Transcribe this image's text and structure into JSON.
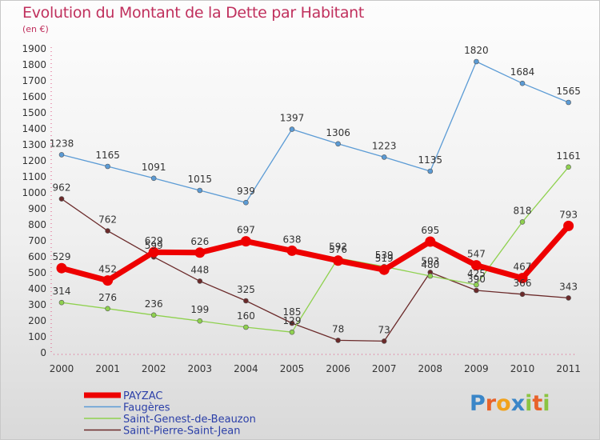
{
  "title": "Evolution du Montant de la Dette par Habitant",
  "subtitle": "(en €)",
  "logo": {
    "letters": [
      "P",
      "r",
      "o",
      "x",
      "i",
      "t",
      "i"
    ],
    "colors": [
      "#3a86c8",
      "#e8622a",
      "#f1a21c",
      "#3a86c8",
      "#8bc441",
      "#e8622a",
      "#8bc441"
    ]
  },
  "chart_data": {
    "type": "line",
    "x": [
      "2000",
      "2001",
      "2002",
      "2003",
      "2004",
      "2005",
      "2006",
      "2007",
      "2008",
      "2009",
      "2010",
      "2011"
    ],
    "ylim": [
      0,
      1900
    ],
    "yticks": [
      0,
      100,
      200,
      300,
      400,
      500,
      600,
      700,
      800,
      900,
      1000,
      1100,
      1200,
      1300,
      1400,
      1500,
      1600,
      1700,
      1800,
      1900
    ],
    "grid": false,
    "legend_position": "bottom-left",
    "series": [
      {
        "name": "Saint-Pierre-Saint-Jean",
        "color": "#6b2a2a",
        "width": 1.3,
        "values": [
          962,
          762,
          599,
          448,
          325,
          185,
          78,
          73,
          503,
          390,
          366,
          343
        ]
      },
      {
        "name": "Saint-Genest-de-Beauzon",
        "color": "#8fd14f",
        "width": 1.3,
        "values": [
          314,
          276,
          236,
          199,
          160,
          129,
          592,
          539,
          480,
          425,
          818,
          1161
        ]
      },
      {
        "name": "Faugères",
        "color": "#5b9bd5",
        "width": 1.3,
        "values": [
          1238,
          1165,
          1091,
          1015,
          939,
          1397,
          1306,
          1223,
          1135,
          1820,
          1684,
          1565
        ]
      },
      {
        "name": "PAYZAC",
        "color": "#ee0000",
        "width": 7,
        "values": [
          529,
          452,
          629,
          626,
          697,
          638,
          576,
          519,
          695,
          547,
          467,
          793
        ]
      }
    ],
    "legend_order": [
      "PAYZAC",
      "Faugères",
      "Saint-Genest-de-Beauzon",
      "Saint-Pierre-Saint-Jean"
    ]
  }
}
